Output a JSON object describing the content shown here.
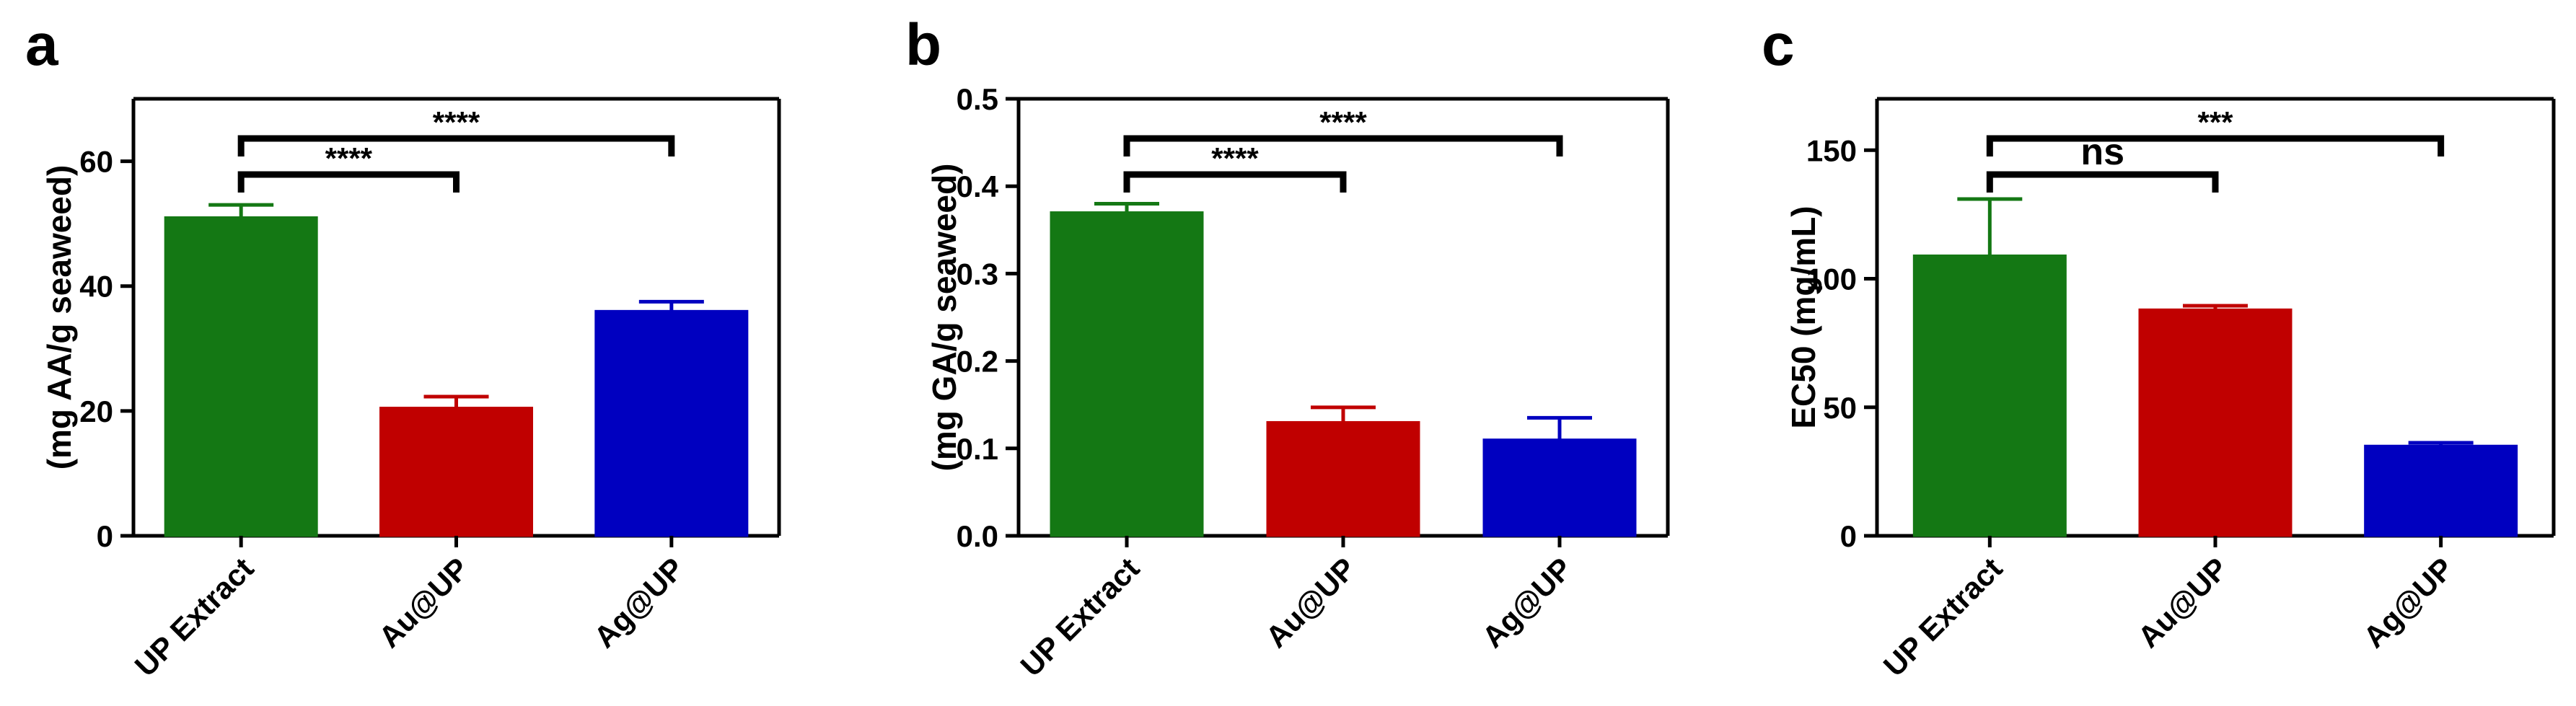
{
  "chart_data": [
    {
      "type": "bar",
      "panel_label": "a",
      "categories": [
        "UP Extract",
        "Au@UP",
        "Ag@UP"
      ],
      "values": [
        51,
        20.5,
        36
      ],
      "errors": [
        2,
        1.8,
        1.5
      ],
      "colors": [
        "#147814",
        "#c00000",
        "#0000c0"
      ],
      "ylabel": "(mg AA/g seaweed)",
      "ylim": [
        0,
        70
      ],
      "yticks": [
        0,
        20,
        40,
        60
      ],
      "ytick_labels": [
        "0",
        "20",
        "40",
        "60"
      ],
      "comparisons": [
        {
          "from": 0,
          "to": 1,
          "label": "****",
          "level": 1
        },
        {
          "from": 0,
          "to": 2,
          "label": "****",
          "level": 2
        }
      ]
    },
    {
      "type": "bar",
      "panel_label": "b",
      "categories": [
        "UP Extract",
        "Au@UP",
        "Ag@UP"
      ],
      "values": [
        0.37,
        0.13,
        0.11
      ],
      "errors": [
        0.01,
        0.017,
        0.025
      ],
      "colors": [
        "#147814",
        "#c00000",
        "#0000c0"
      ],
      "ylabel": "(mg GA/g seaweed)",
      "ylim": [
        0,
        0.5
      ],
      "yticks": [
        0,
        0.1,
        0.2,
        0.3,
        0.4,
        0.5
      ],
      "ytick_labels": [
        "0.0",
        "0.1",
        "0.2",
        "0.3",
        "0.4",
        "0.5"
      ],
      "comparisons": [
        {
          "from": 0,
          "to": 1,
          "label": "****",
          "level": 1
        },
        {
          "from": 0,
          "to": 2,
          "label": "****",
          "level": 2
        }
      ]
    },
    {
      "type": "bar",
      "panel_label": "c",
      "categories": [
        "UP Extract",
        "Au@UP",
        "Ag@UP"
      ],
      "values": [
        109,
        88,
        35
      ],
      "errors": [
        22,
        1.5,
        1.2
      ],
      "colors": [
        "#147814",
        "#c00000",
        "#0000c0"
      ],
      "ylabel": "EC50 (mg/mL)",
      "ylim": [
        0,
        170
      ],
      "yticks": [
        0,
        50,
        100,
        150
      ],
      "ytick_labels": [
        "0",
        "50",
        "100",
        "150"
      ],
      "comparisons": [
        {
          "from": 0,
          "to": 1,
          "label": "ns",
          "level": 1
        },
        {
          "from": 0,
          "to": 2,
          "label": "***",
          "level": 2
        }
      ]
    }
  ]
}
